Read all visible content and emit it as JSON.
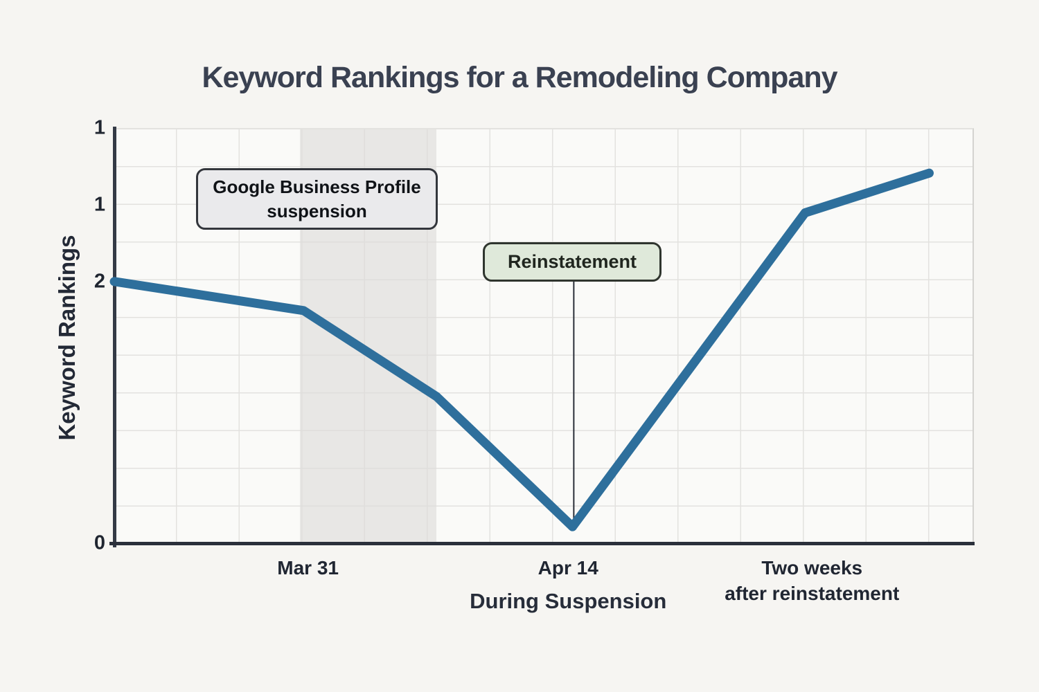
{
  "chart_data": {
    "type": "line",
    "title": "Keyword Rankings for a Remodeling Company",
    "xlabel": "During Suspension",
    "ylabel": "Keyword Rankings",
    "grid": true,
    "legend": "none",
    "x_range": [
      0,
      13.7
    ],
    "y_range": [
      0,
      3.14
    ],
    "line_color": "#2e6f9c",
    "series": [
      {
        "name": "Keyword Rankings",
        "points": [
          [
            0,
            1.98
          ],
          [
            3.02,
            1.76
          ],
          [
            5.14,
            1.11
          ],
          [
            7.31,
            0.125
          ],
          [
            11.02,
            2.5
          ],
          [
            13,
            2.8
          ]
        ]
      }
    ],
    "x_ticks": [
      {
        "value": 3.09,
        "lines": [
          "Mar 31"
        ]
      },
      {
        "value": 7.24,
        "lines": [
          "Apr 14"
        ]
      },
      {
        "value": 11.13,
        "lines": [
          "Two weeks",
          "after reinstatement"
        ]
      }
    ],
    "y_ticks": [
      {
        "value": 3.14,
        "label": "1"
      },
      {
        "value": 2.56,
        "label": "1"
      },
      {
        "value": 1.98,
        "label": "2"
      },
      {
        "value": 0,
        "label": "0"
      }
    ],
    "xlabel_anchor": 7.24,
    "suspension_band": {
      "x0": 2.96,
      "x1": 5.14
    }
  },
  "annotations": {
    "suspension": {
      "lines": [
        "Google Business Profile",
        "suspension"
      ],
      "bg": "#eaeaec",
      "border": "#33363c"
    },
    "reinstatement": {
      "label": "Reinstatement",
      "bg": "#dfe9da",
      "border": "#2f352e",
      "marker": {
        "x": 7.33,
        "y_end": 0.15
      }
    }
  },
  "colors": {
    "page_background": "#f6f5f2",
    "plot_background": "#fafaf8",
    "gridline": "#e3e2df",
    "axis": "#2b303b",
    "title_text": "#3a4151",
    "line": "#2e6f9c",
    "suspension_band": "#dddcda"
  }
}
